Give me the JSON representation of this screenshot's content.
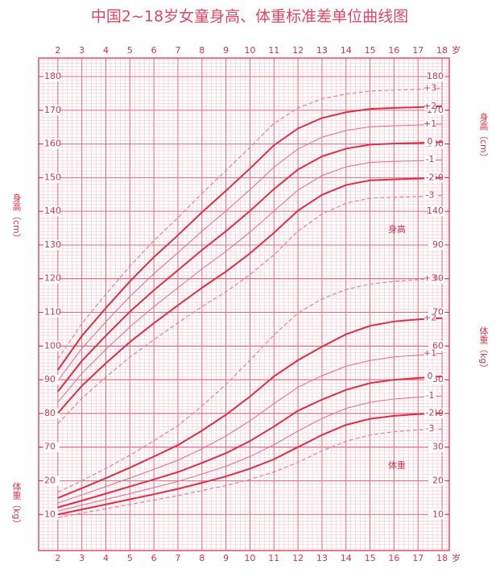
{
  "chart_data": {
    "type": "line",
    "title": "中国2~18岁女童身高、体重标准差单位曲线图",
    "y_label": "身高（cm）",
    "y2_label": "体重（kg）",
    "annotations": [
      "身高",
      "体重"
    ],
    "x_unit": "岁",
    "x": [
      2,
      3,
      4,
      5,
      6,
      7,
      8,
      9,
      10,
      11,
      12,
      13,
      14,
      15,
      16,
      17,
      18
    ],
    "xlim": [
      1.2,
      18.3
    ],
    "xticks": [
      2,
      3,
      4,
      5,
      6,
      7,
      8,
      9,
      10,
      11,
      12,
      13,
      14,
      15,
      16,
      17,
      18
    ],
    "ylim": [
      39.3,
      185.5
    ],
    "yticks": [
      70,
      80,
      90,
      100,
      110,
      120,
      130,
      140,
      150,
      160,
      170,
      180
    ],
    "yticks_right": [
      140,
      150,
      160,
      170,
      180
    ],
    "y2lim": [
      -0.7,
      145.5
    ],
    "y2ticks": [
      10,
      20,
      30,
      40,
      50,
      60,
      70,
      80,
      90
    ],
    "y2ticks_left": [
      10,
      20
    ],
    "grid": true,
    "series": [
      {
        "name": "+3",
        "axis": "y",
        "color": "#e77fa0",
        "style": "dashed",
        "values": [
          96.1,
          106.7,
          115.4,
          123.7,
          131.3,
          138.1,
          145.3,
          152.1,
          159.0,
          166.1,
          170.7,
          173.4,
          174.8,
          175.7,
          176.0,
          176.2,
          176.5
        ]
      },
      {
        "name": "+2",
        "axis": "y",
        "color": "#dc2f45",
        "style": "bold",
        "values": [
          92.9,
          103.0,
          111.3,
          119.2,
          126.4,
          132.9,
          139.7,
          146.1,
          152.7,
          159.6,
          164.6,
          167.7,
          169.4,
          170.4,
          170.7,
          170.9,
          171.2
        ]
      },
      {
        "name": "+1",
        "axis": "y",
        "color": "#e76a8a",
        "style": "thin",
        "values": [
          89.7,
          99.3,
          107.2,
          114.7,
          121.5,
          127.7,
          134.1,
          140.1,
          146.4,
          153.1,
          158.5,
          162.0,
          164.0,
          165.1,
          165.4,
          165.6,
          165.9
        ]
      },
      {
        "name": "0",
        "axis": "y",
        "color": "#dc2f45",
        "style": "bold",
        "values": [
          86.5,
          95.6,
          103.1,
          110.2,
          116.6,
          122.5,
          128.5,
          134.1,
          140.1,
          146.6,
          152.4,
          156.3,
          158.6,
          159.8,
          160.1,
          160.3,
          160.6
        ]
      },
      {
        "name": "-1",
        "axis": "y",
        "color": "#e76a8a",
        "style": "thin",
        "values": [
          83.3,
          91.9,
          99.0,
          105.7,
          111.7,
          117.3,
          122.9,
          128.1,
          133.8,
          140.1,
          146.3,
          150.6,
          153.2,
          154.5,
          154.8,
          155.0,
          155.3
        ]
      },
      {
        "name": "-2",
        "axis": "y",
        "color": "#dc2f45",
        "style": "bold",
        "values": [
          80.1,
          88.2,
          94.9,
          101.2,
          106.8,
          112.1,
          117.3,
          122.1,
          127.5,
          133.6,
          140.2,
          144.9,
          147.8,
          149.2,
          149.5,
          149.7,
          150.0
        ]
      },
      {
        "name": "-3",
        "axis": "y",
        "color": "#e77fa0",
        "style": "dashed",
        "values": [
          76.9,
          84.5,
          90.8,
          96.7,
          101.9,
          106.9,
          111.7,
          116.1,
          121.2,
          127.1,
          134.1,
          139.2,
          142.4,
          143.9,
          144.2,
          144.4,
          144.7
        ]
      },
      {
        "name": "+3",
        "axis": "y2",
        "color": "#e77fa0",
        "style": "dashed",
        "values": [
          16.6,
          20.0,
          23.7,
          27.6,
          31.9,
          36.4,
          42.2,
          48.6,
          55.8,
          63.3,
          69.8,
          74.0,
          76.8,
          78.4,
          79.2,
          79.7,
          80.1
        ]
      },
      {
        "name": "+2",
        "axis": "y2",
        "color": "#dc2f45",
        "style": "bold",
        "values": [
          14.9,
          17.8,
          20.8,
          23.9,
          27.2,
          30.6,
          34.9,
          39.6,
          45.0,
          51.0,
          55.8,
          59.8,
          63.5,
          66.0,
          67.3,
          67.9,
          68.3
        ]
      },
      {
        "name": "+1",
        "axis": "y2",
        "color": "#e76a8a",
        "style": "thin",
        "values": [
          13.4,
          15.8,
          18.3,
          20.8,
          23.4,
          26.1,
          29.5,
          33.3,
          37.8,
          42.9,
          47.8,
          51.2,
          54.0,
          55.7,
          56.8,
          57.3,
          57.8
        ]
      },
      {
        "name": "0",
        "axis": "y2",
        "color": "#dc2f45",
        "style": "bold",
        "values": [
          12.1,
          14.1,
          16.2,
          18.3,
          20.4,
          22.6,
          25.3,
          28.2,
          31.8,
          36.1,
          40.8,
          44.1,
          47.0,
          49.0,
          50.0,
          50.5,
          51.0
        ]
      },
      {
        "name": "-1",
        "axis": "y2",
        "color": "#e76a8a",
        "style": "thin",
        "values": [
          11.0,
          12.8,
          14.5,
          16.2,
          18.0,
          19.8,
          22.0,
          24.3,
          27.2,
          30.7,
          34.8,
          38.5,
          41.5,
          43.3,
          44.3,
          44.8,
          45.2
        ]
      },
      {
        "name": "-2",
        "axis": "y2",
        "color": "#dc2f45",
        "style": "bold",
        "values": [
          10.0,
          11.5,
          13.0,
          14.5,
          16.0,
          17.6,
          19.4,
          21.3,
          23.6,
          26.4,
          30.0,
          33.6,
          36.6,
          38.4,
          39.3,
          39.8,
          40.1
        ]
      },
      {
        "name": "-3",
        "axis": "y2",
        "color": "#e77fa0",
        "style": "dashed",
        "values": [
          9.1,
          10.4,
          11.7,
          13.0,
          14.3,
          15.6,
          17.1,
          18.6,
          20.4,
          22.6,
          25.5,
          28.9,
          31.7,
          33.6,
          34.6,
          35.1,
          35.4
        ]
      }
    ]
  }
}
